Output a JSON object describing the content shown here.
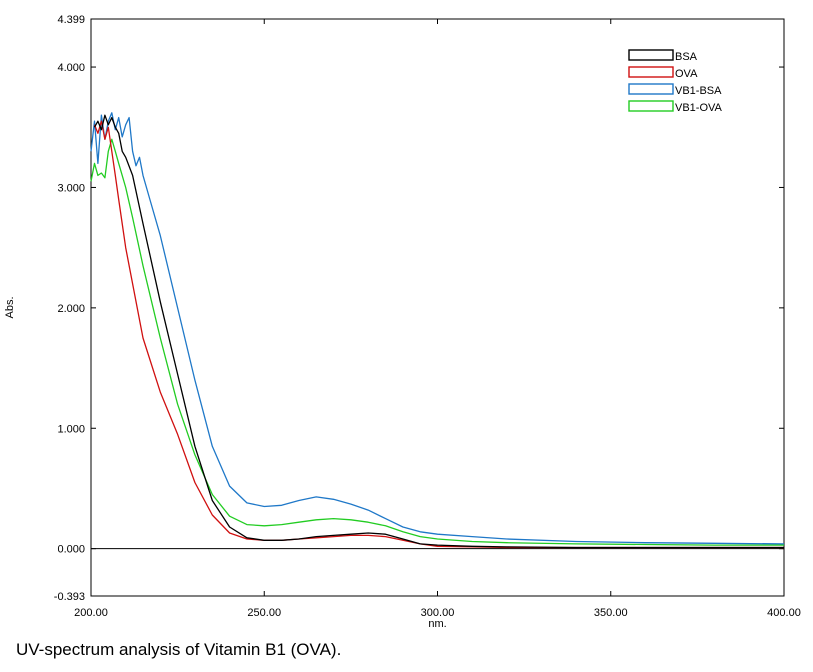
{
  "chart_data": {
    "type": "line",
    "title": "",
    "xlabel": "nm.",
    "ylabel": "Abs.",
    "xlim": [
      200,
      400
    ],
    "ylim": [
      -0.393,
      4.399
    ],
    "x_ticks": [
      200,
      250,
      300,
      350,
      400
    ],
    "x_tick_labels": [
      "200.00",
      "250.00",
      "300.00",
      "350.00",
      "400.00"
    ],
    "y_ticks": [
      -0.393,
      0,
      1,
      2,
      3,
      4,
      4.399
    ],
    "y_tick_labels": [
      "-0.393",
      "0.000",
      "1.000",
      "2.000",
      "3.000",
      "4.000",
      "4.399"
    ],
    "grid": false,
    "zero_line": true,
    "legend_position": "top-right",
    "series": [
      {
        "name": "BSA",
        "color": "#000000",
        "x": [
          201,
          202,
          203,
          204,
          205,
          206,
          207,
          208,
          209,
          210,
          212,
          215,
          220,
          225,
          230,
          235,
          240,
          245,
          250,
          255,
          260,
          265,
          270,
          275,
          280,
          285,
          290,
          295,
          300,
          310,
          320,
          340,
          360,
          380,
          400
        ],
        "y": [
          3.5,
          3.55,
          3.48,
          3.6,
          3.52,
          3.58,
          3.5,
          3.45,
          3.3,
          3.25,
          3.1,
          2.7,
          2.05,
          1.45,
          0.85,
          0.4,
          0.18,
          0.09,
          0.07,
          0.07,
          0.08,
          0.1,
          0.11,
          0.12,
          0.13,
          0.12,
          0.08,
          0.04,
          0.03,
          0.02,
          0.015,
          0.01,
          0.01,
          0.01,
          0.01
        ]
      },
      {
        "name": "OVA",
        "color": "#d01010",
        "x": [
          201,
          202,
          203,
          204,
          205,
          206,
          207,
          208,
          209,
          210,
          212,
          215,
          220,
          225,
          230,
          235,
          240,
          245,
          250,
          255,
          260,
          265,
          270,
          275,
          280,
          285,
          290,
          295,
          300,
          310,
          320,
          340,
          360,
          380,
          400
        ],
        "y": [
          3.52,
          3.45,
          3.55,
          3.4,
          3.5,
          3.3,
          3.1,
          2.9,
          2.7,
          2.5,
          2.2,
          1.75,
          1.3,
          0.95,
          0.55,
          0.28,
          0.13,
          0.08,
          0.07,
          0.07,
          0.08,
          0.09,
          0.1,
          0.11,
          0.11,
          0.1,
          0.07,
          0.04,
          0.02,
          0.015,
          0.01,
          0.01,
          0.01,
          0.01,
          0.01
        ]
      },
      {
        "name": "VB1-BSA",
        "color": "#1f78c8",
        "x": [
          200,
          201,
          202,
          203,
          204,
          205,
          206,
          207,
          208,
          209,
          210,
          211,
          212,
          213,
          214,
          215,
          217,
          220,
          225,
          230,
          235,
          240,
          245,
          250,
          255,
          260,
          265,
          270,
          275,
          280,
          285,
          290,
          295,
          300,
          310,
          320,
          340,
          360,
          380,
          400
        ],
        "y": [
          3.3,
          3.55,
          3.2,
          3.6,
          3.4,
          3.55,
          3.62,
          3.48,
          3.58,
          3.42,
          3.52,
          3.58,
          3.3,
          3.18,
          3.25,
          3.1,
          2.9,
          2.6,
          2.0,
          1.4,
          0.85,
          0.52,
          0.38,
          0.35,
          0.36,
          0.4,
          0.43,
          0.41,
          0.37,
          0.32,
          0.25,
          0.18,
          0.14,
          0.12,
          0.1,
          0.08,
          0.06,
          0.05,
          0.045,
          0.04
        ]
      },
      {
        "name": "VB1-OVA",
        "color": "#22cc22",
        "x": [
          200,
          201,
          202,
          203,
          204,
          205,
          206,
          207,
          208,
          209,
          210,
          212,
          215,
          220,
          225,
          230,
          235,
          240,
          245,
          250,
          255,
          260,
          265,
          270,
          275,
          280,
          285,
          290,
          295,
          300,
          310,
          320,
          340,
          360,
          380,
          400
        ],
        "y": [
          3.05,
          3.2,
          3.1,
          3.12,
          3.08,
          3.3,
          3.4,
          3.3,
          3.2,
          3.1,
          3.0,
          2.75,
          2.35,
          1.75,
          1.2,
          0.78,
          0.45,
          0.27,
          0.2,
          0.19,
          0.2,
          0.22,
          0.24,
          0.25,
          0.24,
          0.22,
          0.19,
          0.14,
          0.1,
          0.08,
          0.06,
          0.05,
          0.04,
          0.035,
          0.03,
          0.03
        ]
      }
    ]
  },
  "caption": "UV-spectrum analysis of Vitamin B1 (OVA)."
}
